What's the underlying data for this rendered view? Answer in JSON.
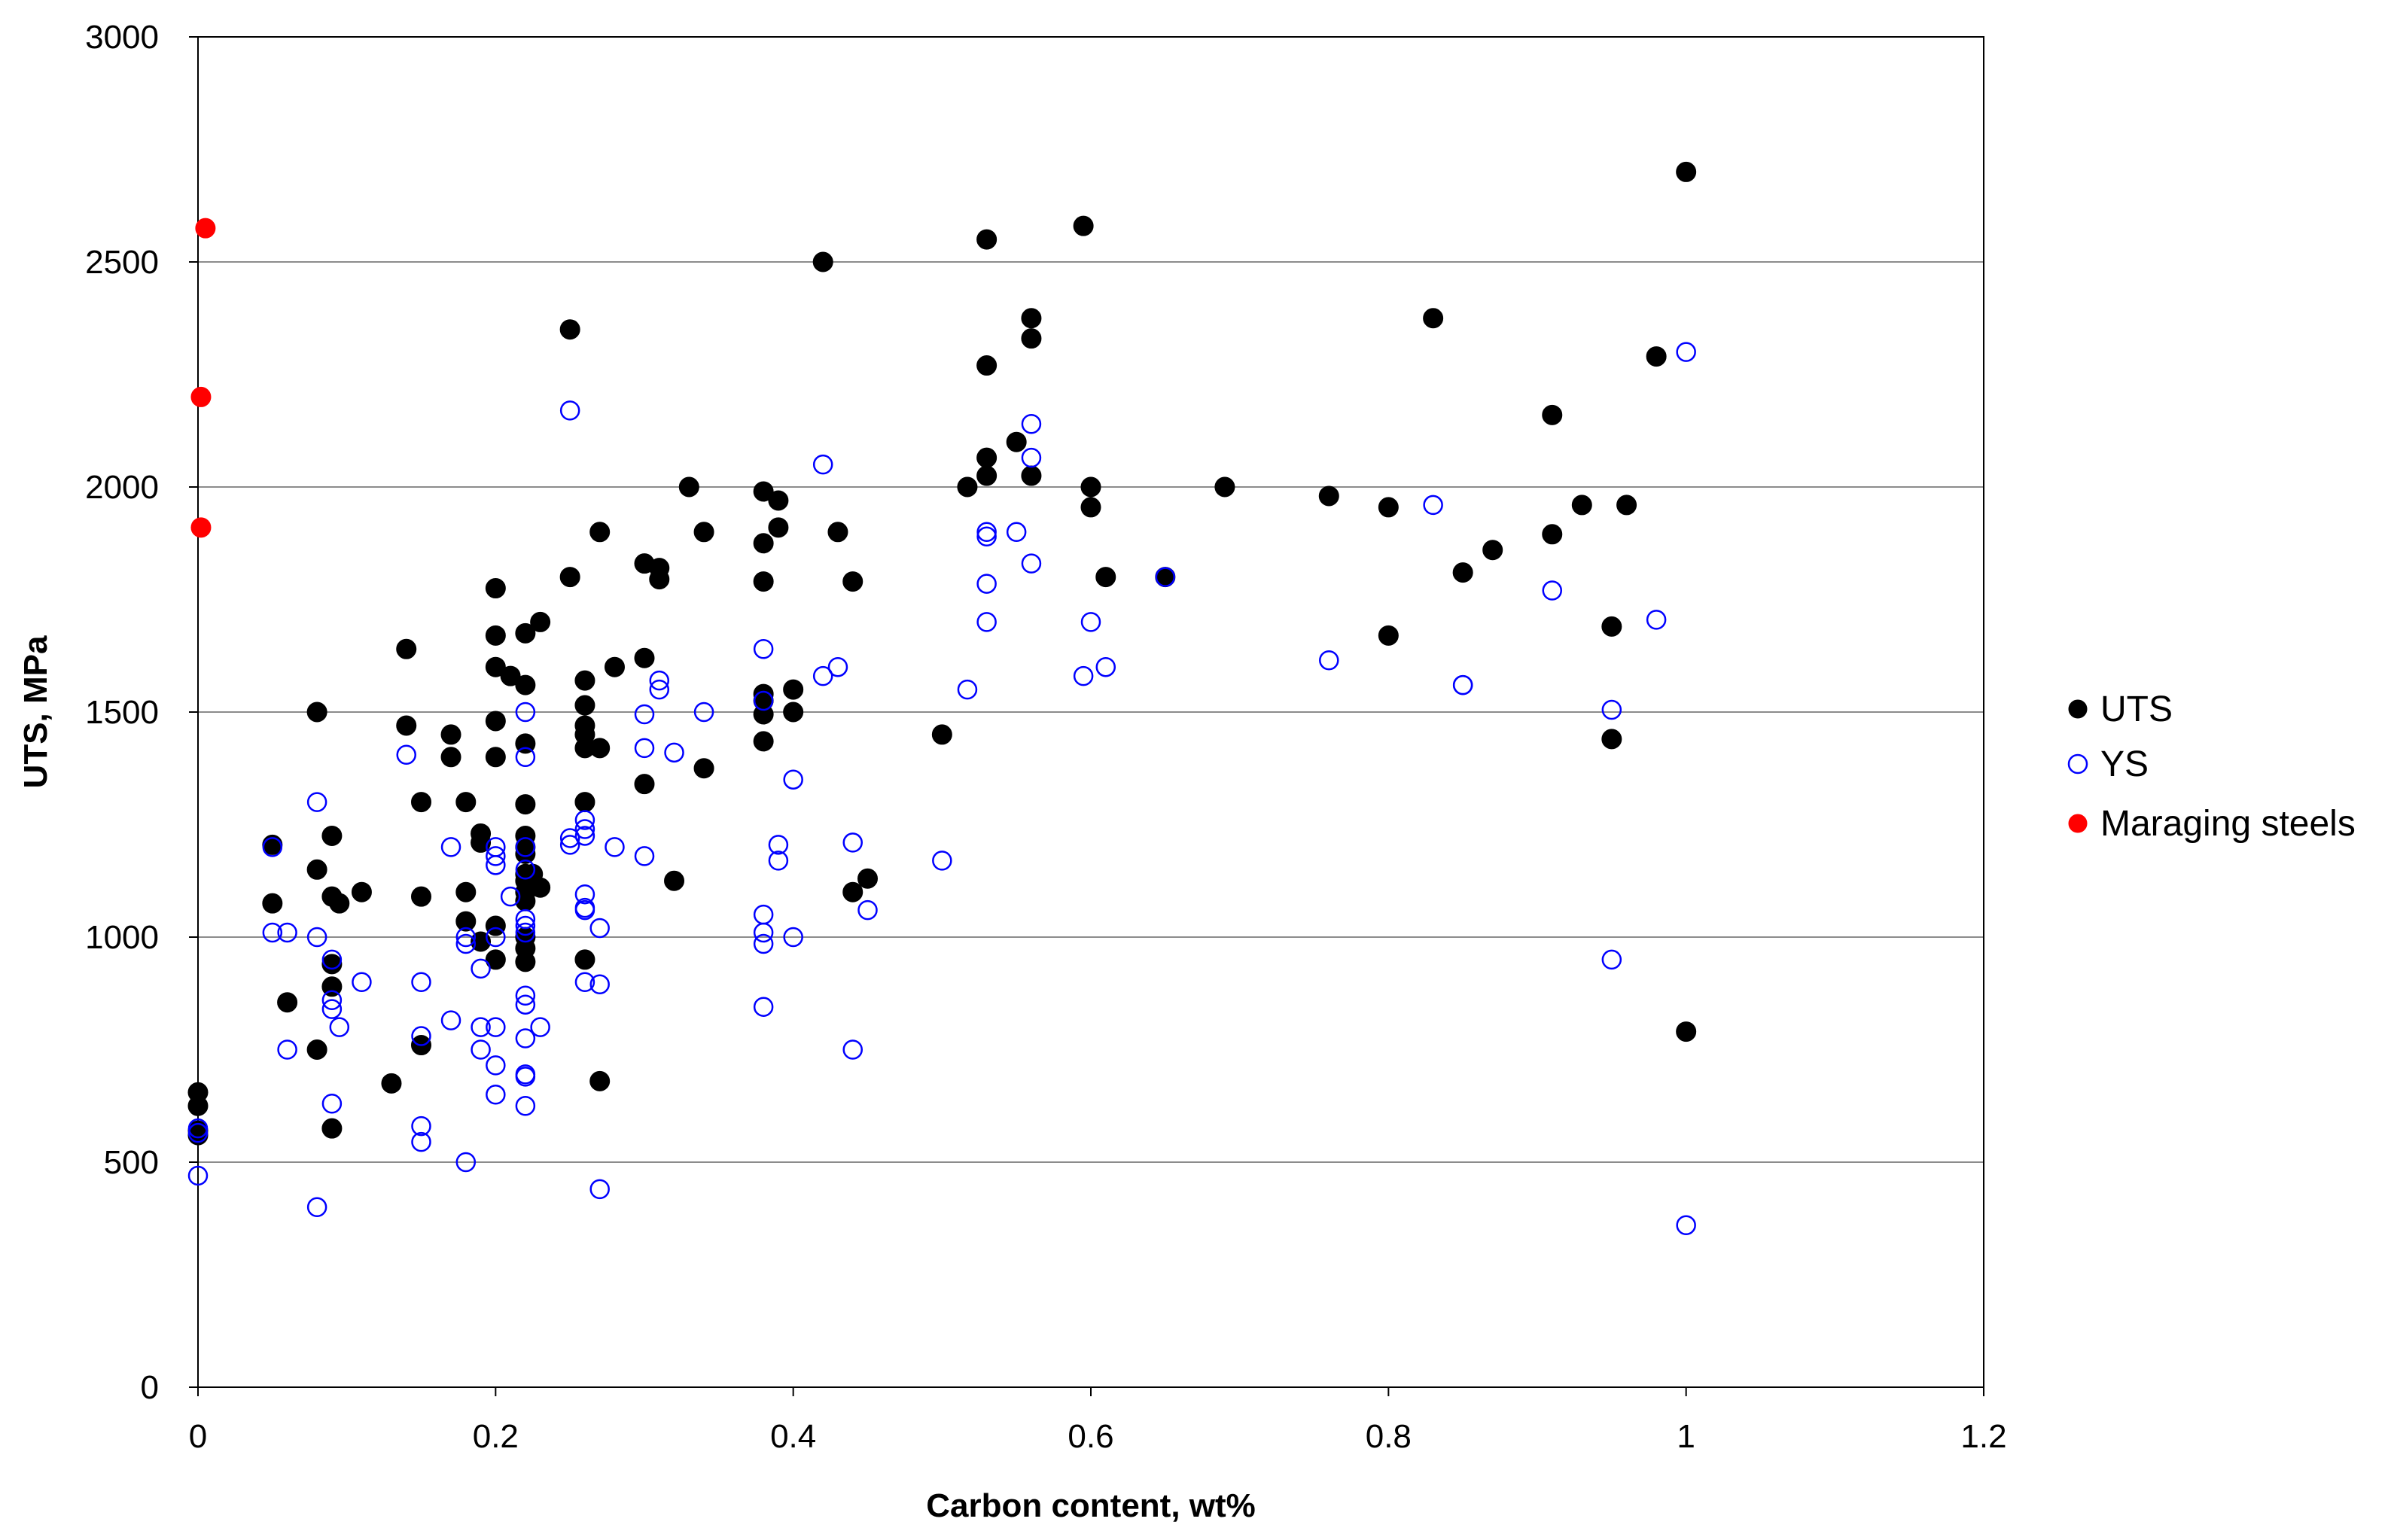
{
  "chart_data": {
    "type": "scatter",
    "title": "",
    "xlabel": "Carbon content, wt%",
    "ylabel": "UTS, MPa",
    "xlim": [
      0,
      1.2
    ],
    "ylim": [
      0,
      3000
    ],
    "xticks": [
      0,
      0.2,
      0.4,
      0.6,
      0.8,
      1,
      1.2
    ],
    "xtick_labels": [
      "0",
      "0.2",
      "0.4",
      "0.6",
      "0.8",
      "1",
      "1.2"
    ],
    "yticks": [
      0,
      500,
      1000,
      1500,
      2000,
      2500,
      3000
    ],
    "ytick_labels": [
      "0",
      "500",
      "1000",
      "1500",
      "2000",
      "2500",
      "3000"
    ],
    "grid": "horizontal major gridlines",
    "legend_position": "right",
    "series": [
      {
        "name": "UTS",
        "marker": "filled-circle",
        "color": "#000000",
        "points": [
          [
            0.0,
            655
          ],
          [
            0.0,
            625
          ],
          [
            0.0,
            560
          ],
          [
            0.0,
            570
          ],
          [
            0.05,
            1205
          ],
          [
            0.05,
            1075
          ],
          [
            0.06,
            855
          ],
          [
            0.08,
            1500
          ],
          [
            0.08,
            1150
          ],
          [
            0.08,
            750
          ],
          [
            0.09,
            1225
          ],
          [
            0.09,
            1090
          ],
          [
            0.09,
            940
          ],
          [
            0.09,
            890
          ],
          [
            0.09,
            575
          ],
          [
            0.095,
            1075
          ],
          [
            0.11,
            1100
          ],
          [
            0.13,
            675
          ],
          [
            0.14,
            1640
          ],
          [
            0.14,
            1470
          ],
          [
            0.15,
            1300
          ],
          [
            0.15,
            1090
          ],
          [
            0.15,
            760
          ],
          [
            0.17,
            1450
          ],
          [
            0.17,
            1400
          ],
          [
            0.18,
            1300
          ],
          [
            0.18,
            1100
          ],
          [
            0.18,
            1035
          ],
          [
            0.19,
            1230
          ],
          [
            0.19,
            1210
          ],
          [
            0.19,
            990
          ],
          [
            0.2,
            1775
          ],
          [
            0.2,
            1670
          ],
          [
            0.2,
            1600
          ],
          [
            0.2,
            1480
          ],
          [
            0.2,
            1400
          ],
          [
            0.2,
            1025
          ],
          [
            0.2,
            950
          ],
          [
            0.21,
            1580
          ],
          [
            0.22,
            1675
          ],
          [
            0.22,
            1560
          ],
          [
            0.22,
            1430
          ],
          [
            0.22,
            1295
          ],
          [
            0.22,
            1225
          ],
          [
            0.22,
            1200
          ],
          [
            0.22,
            1185
          ],
          [
            0.22,
            1140
          ],
          [
            0.22,
            1125
          ],
          [
            0.22,
            1100
          ],
          [
            0.22,
            1080
          ],
          [
            0.22,
            1000
          ],
          [
            0.22,
            975
          ],
          [
            0.22,
            945
          ],
          [
            0.225,
            1140
          ],
          [
            0.23,
            1700
          ],
          [
            0.23,
            1110
          ],
          [
            0.25,
            2350
          ],
          [
            0.25,
            1800
          ],
          [
            0.26,
            1570
          ],
          [
            0.26,
            1515
          ],
          [
            0.26,
            1470
          ],
          [
            0.26,
            1450
          ],
          [
            0.26,
            1420
          ],
          [
            0.26,
            1300
          ],
          [
            0.26,
            950
          ],
          [
            0.27,
            1900
          ],
          [
            0.27,
            1420
          ],
          [
            0.27,
            680
          ],
          [
            0.28,
            1600
          ],
          [
            0.3,
            1830
          ],
          [
            0.3,
            1620
          ],
          [
            0.3,
            1340
          ],
          [
            0.31,
            1820
          ],
          [
            0.31,
            1795
          ],
          [
            0.32,
            1125
          ],
          [
            0.33,
            2000
          ],
          [
            0.34,
            1900
          ],
          [
            0.34,
            1375
          ],
          [
            0.38,
            1990
          ],
          [
            0.38,
            1875
          ],
          [
            0.38,
            1790
          ],
          [
            0.38,
            1540
          ],
          [
            0.38,
            1525
          ],
          [
            0.38,
            1495
          ],
          [
            0.38,
            1435
          ],
          [
            0.39,
            1970
          ],
          [
            0.39,
            1910
          ],
          [
            0.4,
            1550
          ],
          [
            0.4,
            1500
          ],
          [
            0.42,
            2500
          ],
          [
            0.43,
            1900
          ],
          [
            0.44,
            1790
          ],
          [
            0.44,
            1100
          ],
          [
            0.45,
            1130
          ],
          [
            0.5,
            1450
          ],
          [
            0.517,
            2000
          ],
          [
            0.53,
            2550
          ],
          [
            0.53,
            2270
          ],
          [
            0.53,
            2065
          ],
          [
            0.53,
            2025
          ],
          [
            0.55,
            2100
          ],
          [
            0.56,
            2375
          ],
          [
            0.56,
            2330
          ],
          [
            0.56,
            2025
          ],
          [
            0.595,
            2580
          ],
          [
            0.6,
            2000
          ],
          [
            0.6,
            1955
          ],
          [
            0.61,
            1800
          ],
          [
            0.65,
            1800
          ],
          [
            0.69,
            2000
          ],
          [
            0.76,
            1980
          ],
          [
            0.8,
            1955
          ],
          [
            0.8,
            1670
          ],
          [
            0.83,
            2375
          ],
          [
            0.85,
            1810
          ],
          [
            0.87,
            1860
          ],
          [
            0.91,
            2160
          ],
          [
            0.91,
            1895
          ],
          [
            0.93,
            1960
          ],
          [
            0.95,
            1690
          ],
          [
            0.95,
            1440
          ],
          [
            0.96,
            1960
          ],
          [
            0.98,
            2290
          ],
          [
            1.0,
            2700
          ],
          [
            1.0,
            790
          ]
        ]
      },
      {
        "name": "YS",
        "marker": "open-circle",
        "color": "#0000ff",
        "points": [
          [
            0.0,
            575
          ],
          [
            0.0,
            565
          ],
          [
            0.0,
            470
          ],
          [
            0.05,
            1200
          ],
          [
            0.05,
            1010
          ],
          [
            0.06,
            1010
          ],
          [
            0.06,
            750
          ],
          [
            0.08,
            1300
          ],
          [
            0.08,
            1000
          ],
          [
            0.08,
            400
          ],
          [
            0.09,
            950
          ],
          [
            0.09,
            860
          ],
          [
            0.09,
            840
          ],
          [
            0.09,
            630
          ],
          [
            0.095,
            800
          ],
          [
            0.11,
            900
          ],
          [
            0.14,
            1405
          ],
          [
            0.15,
            900
          ],
          [
            0.15,
            780
          ],
          [
            0.15,
            580
          ],
          [
            0.15,
            545
          ],
          [
            0.17,
            1200
          ],
          [
            0.17,
            815
          ],
          [
            0.18,
            1000
          ],
          [
            0.18,
            985
          ],
          [
            0.18,
            500
          ],
          [
            0.19,
            930
          ],
          [
            0.19,
            800
          ],
          [
            0.19,
            750
          ],
          [
            0.2,
            1200
          ],
          [
            0.2,
            1180
          ],
          [
            0.2,
            1160
          ],
          [
            0.2,
            1000
          ],
          [
            0.2,
            800
          ],
          [
            0.2,
            715
          ],
          [
            0.2,
            650
          ],
          [
            0.21,
            1090
          ],
          [
            0.22,
            1500
          ],
          [
            0.22,
            1400
          ],
          [
            0.22,
            1200
          ],
          [
            0.22,
            1150
          ],
          [
            0.22,
            1040
          ],
          [
            0.22,
            1025
          ],
          [
            0.22,
            1010
          ],
          [
            0.22,
            870
          ],
          [
            0.22,
            850
          ],
          [
            0.22,
            775
          ],
          [
            0.22,
            695
          ],
          [
            0.22,
            690
          ],
          [
            0.22,
            625
          ],
          [
            0.23,
            800
          ],
          [
            0.25,
            2170
          ],
          [
            0.25,
            1220
          ],
          [
            0.25,
            1205
          ],
          [
            0.26,
            1260
          ],
          [
            0.26,
            1240
          ],
          [
            0.26,
            1225
          ],
          [
            0.26,
            1095
          ],
          [
            0.26,
            1065
          ],
          [
            0.26,
            1060
          ],
          [
            0.26,
            900
          ],
          [
            0.27,
            1020
          ],
          [
            0.27,
            895
          ],
          [
            0.27,
            440
          ],
          [
            0.28,
            1200
          ],
          [
            0.3,
            1495
          ],
          [
            0.3,
            1420
          ],
          [
            0.3,
            1180
          ],
          [
            0.31,
            1570
          ],
          [
            0.31,
            1550
          ],
          [
            0.32,
            1410
          ],
          [
            0.34,
            1500
          ],
          [
            0.38,
            1640
          ],
          [
            0.38,
            1525
          ],
          [
            0.38,
            1050
          ],
          [
            0.38,
            1010
          ],
          [
            0.38,
            985
          ],
          [
            0.38,
            845
          ],
          [
            0.39,
            1205
          ],
          [
            0.39,
            1170
          ],
          [
            0.4,
            1350
          ],
          [
            0.4,
            1000
          ],
          [
            0.42,
            2050
          ],
          [
            0.42,
            1580
          ],
          [
            0.43,
            1600
          ],
          [
            0.44,
            1210
          ],
          [
            0.44,
            750
          ],
          [
            0.45,
            1060
          ],
          [
            0.5,
            1170
          ],
          [
            0.517,
            1550
          ],
          [
            0.53,
            1900
          ],
          [
            0.53,
            1890
          ],
          [
            0.53,
            1785
          ],
          [
            0.53,
            1700
          ],
          [
            0.55,
            1900
          ],
          [
            0.56,
            2140
          ],
          [
            0.56,
            2065
          ],
          [
            0.56,
            1830
          ],
          [
            0.595,
            1580
          ],
          [
            0.6,
            1700
          ],
          [
            0.61,
            1600
          ],
          [
            0.65,
            1800
          ],
          [
            0.76,
            1615
          ],
          [
            0.83,
            1960
          ],
          [
            0.85,
            1560
          ],
          [
            0.85,
            1560
          ],
          [
            0.91,
            1770
          ],
          [
            0.95,
            1505
          ],
          [
            0.95,
            950
          ],
          [
            0.98,
            1705
          ],
          [
            1.0,
            2300
          ],
          [
            1.0,
            360
          ]
        ]
      },
      {
        "name": "Maraging steels",
        "marker": "filled-circle",
        "color": "#ff0000",
        "points": [
          [
            0.005,
            2575
          ],
          [
            0.002,
            2200
          ],
          [
            0.002,
            1910
          ]
        ]
      }
    ]
  }
}
